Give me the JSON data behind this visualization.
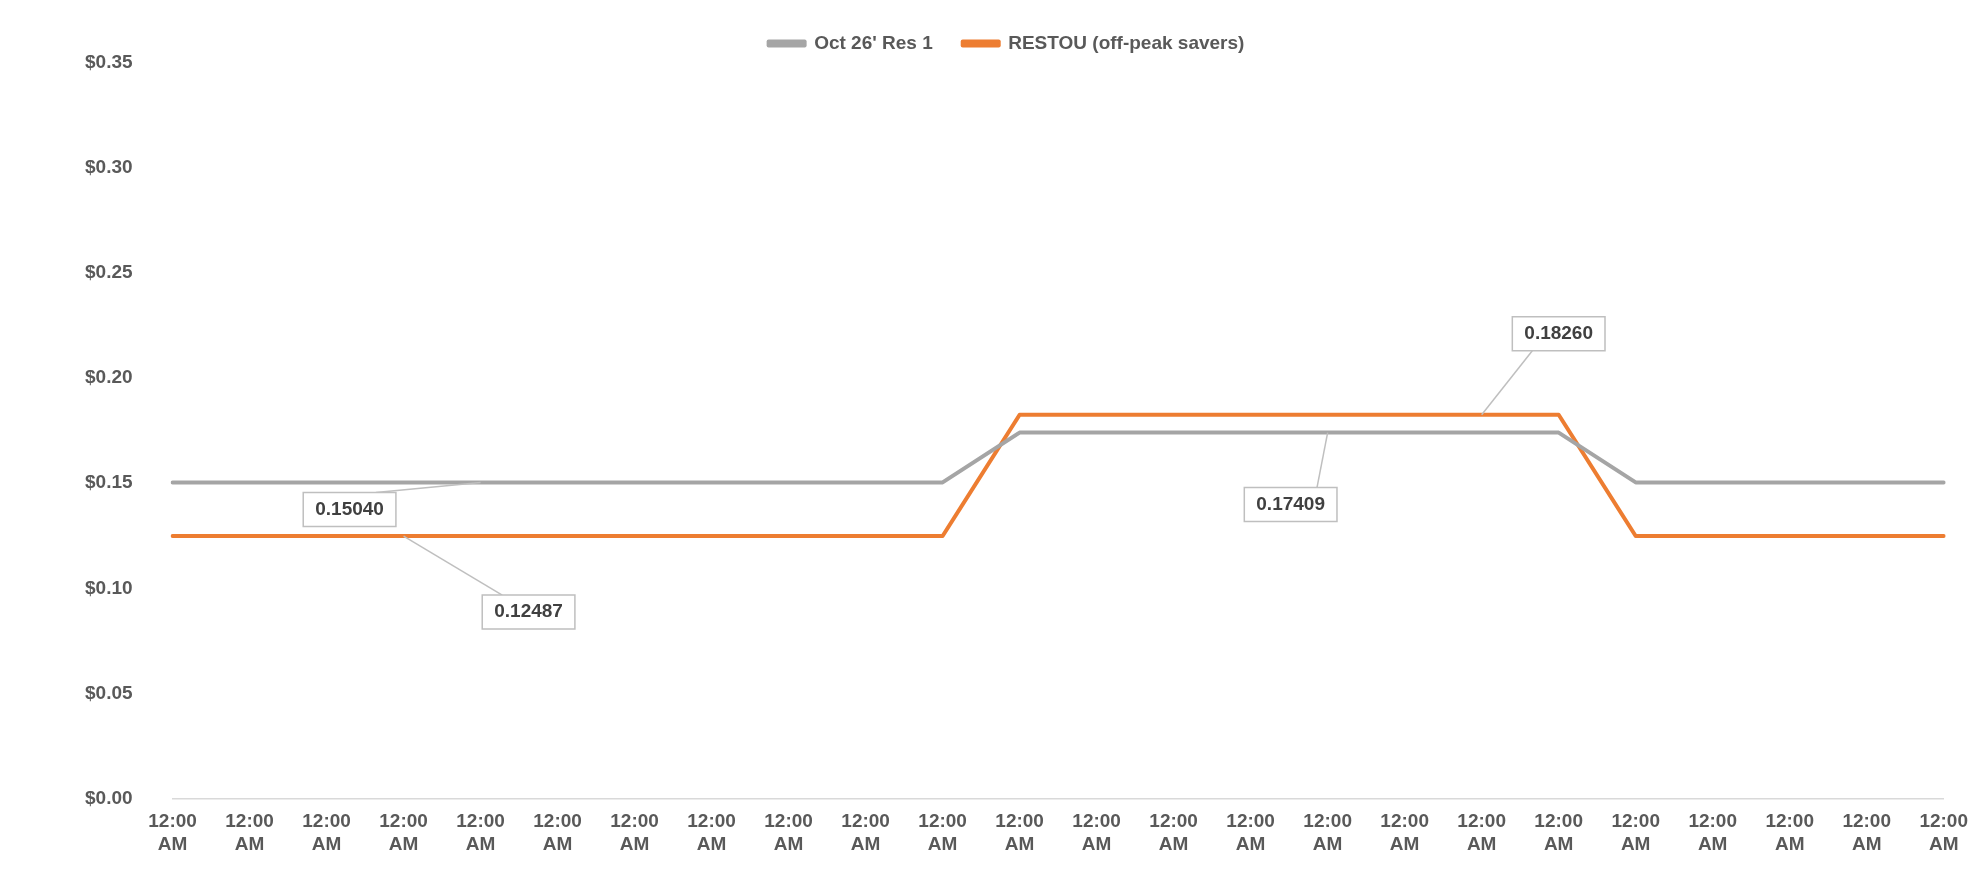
{
  "chart_data": {
    "type": "line",
    "categories": [
      "12:00 AM",
      "12:00 AM",
      "12:00 AM",
      "12:00 AM",
      "12:00 AM",
      "12:00 AM",
      "12:00 AM",
      "12:00 AM",
      "12:00 AM",
      "12:00 AM",
      "12:00 AM",
      "12:00 AM",
      "12:00 AM",
      "12:00 AM",
      "12:00 AM",
      "12:00 AM",
      "12:00 AM",
      "12:00 AM",
      "12:00 AM",
      "12:00 AM",
      "12:00 AM",
      "12:00 AM",
      "12:00 AM",
      "12:00 AM"
    ],
    "series": [
      {
        "name": "Oct 26' Res 1",
        "color": "#a5a5a5",
        "values": [
          0.1504,
          0.1504,
          0.1504,
          0.1504,
          0.1504,
          0.1504,
          0.1504,
          0.1504,
          0.1504,
          0.1504,
          0.1504,
          0.17409,
          0.17409,
          0.17409,
          0.17409,
          0.17409,
          0.17409,
          0.17409,
          0.17409,
          0.1504,
          0.1504,
          0.1504,
          0.1504,
          0.1504
        ],
        "value_labels": [
          null,
          null,
          null,
          null,
          "0.15040",
          null,
          null,
          null,
          null,
          null,
          null,
          null,
          null,
          null,
          null,
          "0.17409",
          null,
          null,
          null,
          null,
          null,
          null,
          null,
          null
        ]
      },
      {
        "name": "RESTOU (off-peak savers)",
        "color": "#ed7d31",
        "values": [
          0.12487,
          0.12487,
          0.12487,
          0.12487,
          0.12487,
          0.12487,
          0.12487,
          0.12487,
          0.12487,
          0.12487,
          0.12487,
          0.1826,
          0.1826,
          0.1826,
          0.1826,
          0.1826,
          0.1826,
          0.1826,
          0.1826,
          0.12487,
          0.12487,
          0.12487,
          0.12487,
          0.12487
        ],
        "value_labels": [
          null,
          null,
          null,
          "0.12487",
          null,
          null,
          null,
          null,
          null,
          null,
          null,
          null,
          null,
          null,
          null,
          null,
          null,
          "0.18260",
          null,
          null,
          null,
          null,
          null,
          null
        ]
      }
    ],
    "ylim": [
      0,
      0.35
    ],
    "yticks": [
      {
        "value": 0,
        "label": "$0.00"
      },
      {
        "value": 0.05,
        "label": "$0.05"
      },
      {
        "value": 0.1,
        "label": "$0.10"
      },
      {
        "value": 0.15,
        "label": "$0.15"
      },
      {
        "value": 0.2,
        "label": "$0.20"
      },
      {
        "value": 0.25,
        "label": "$0.25"
      },
      {
        "value": 0.3,
        "label": "$0.30"
      },
      {
        "value": 0.35,
        "label": "$0.35"
      }
    ],
    "grid": false,
    "legend": "top",
    "marker": "none",
    "line_style": "solid"
  }
}
